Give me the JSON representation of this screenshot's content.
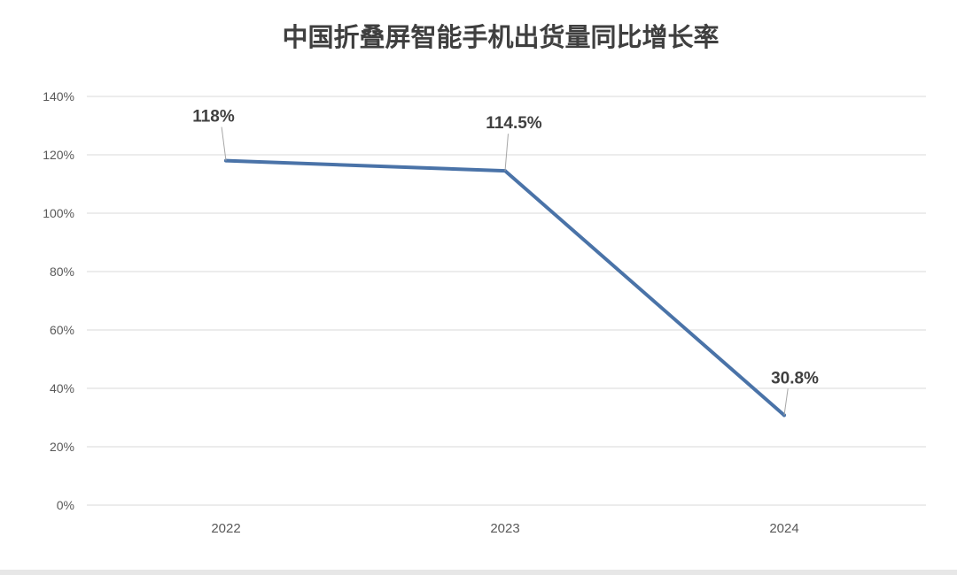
{
  "chart_data": {
    "type": "line",
    "title": "中国折叠屏智能手机出货量同比增长率",
    "xlabel": "",
    "ylabel": "",
    "categories": [
      "2022",
      "2023",
      "2024"
    ],
    "series": [
      {
        "values": [
          118,
          114.5,
          30.8
        ],
        "data_labels": [
          "118%",
          "114.5%",
          "30.8%"
        ]
      }
    ],
    "ylim": [
      0,
      140
    ],
    "y_ticks": [
      0,
      20,
      40,
      60,
      80,
      100,
      120,
      140
    ],
    "y_tick_labels": [
      "0%",
      "20%",
      "40%",
      "60%",
      "80%",
      "100%",
      "120%",
      "140%"
    ],
    "grid": true,
    "legend": "none",
    "line_color": "#4a73a8"
  }
}
